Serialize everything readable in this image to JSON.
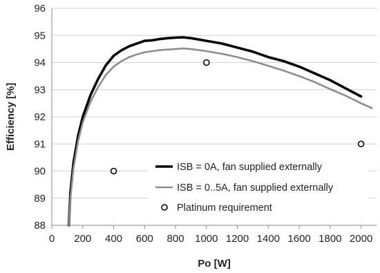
{
  "chart_data": {
    "type": "line",
    "title": "",
    "xlabel": "Po [W]",
    "ylabel": "Efficiency [%]",
    "xlim": [
      0,
      2100
    ],
    "ylim": [
      88,
      96
    ],
    "x_ticks": [
      0,
      200,
      400,
      600,
      800,
      1000,
      1200,
      1400,
      1600,
      1800,
      2000
    ],
    "y_ticks": [
      88,
      89,
      90,
      91,
      92,
      93,
      94,
      95,
      96
    ],
    "grid": "horizontal",
    "legend_position": "bottom-right",
    "colors": {
      "series1": "#000000",
      "series2": "#8c8c8c",
      "markers": "#000000",
      "grid": "#d0d0d0"
    },
    "series": [
      {
        "name": "ISB = 0A, fan supplied externally",
        "style": "line",
        "x": [
          110,
          120,
          140,
          170,
          200,
          250,
          300,
          350,
          400,
          450,
          500,
          550,
          600,
          650,
          700,
          750,
          800,
          850,
          900,
          1000,
          1100,
          1200,
          1300,
          1400,
          1500,
          1600,
          1700,
          1800,
          1900,
          2000
        ],
        "y": [
          88.0,
          89.2,
          90.3,
          91.3,
          92.0,
          92.8,
          93.4,
          93.9,
          94.25,
          94.45,
          94.6,
          94.7,
          94.8,
          94.82,
          94.87,
          94.9,
          94.92,
          94.93,
          94.9,
          94.8,
          94.7,
          94.55,
          94.4,
          94.2,
          94.05,
          93.85,
          93.6,
          93.35,
          93.05,
          92.75
        ]
      },
      {
        "name": "ISB = 0..5A, fan supplied externally",
        "style": "line",
        "x": [
          110,
          120,
          140,
          170,
          200,
          250,
          300,
          350,
          400,
          450,
          500,
          550,
          600,
          650,
          700,
          750,
          800,
          850,
          900,
          1000,
          1100,
          1200,
          1300,
          1400,
          1500,
          1600,
          1700,
          1800,
          1900,
          2000,
          2070
        ],
        "y": [
          88.0,
          89.0,
          90.1,
          91.1,
          91.8,
          92.55,
          93.1,
          93.55,
          93.85,
          94.05,
          94.2,
          94.3,
          94.38,
          94.42,
          94.46,
          94.48,
          94.5,
          94.52,
          94.5,
          94.42,
          94.32,
          94.2,
          94.05,
          93.88,
          93.7,
          93.5,
          93.28,
          93.02,
          92.78,
          92.5,
          92.32
        ]
      },
      {
        "name": "Platinum requirement",
        "style": "marker",
        "x": [
          400,
          1000,
          2000
        ],
        "y": [
          90,
          94,
          91
        ]
      }
    ]
  }
}
